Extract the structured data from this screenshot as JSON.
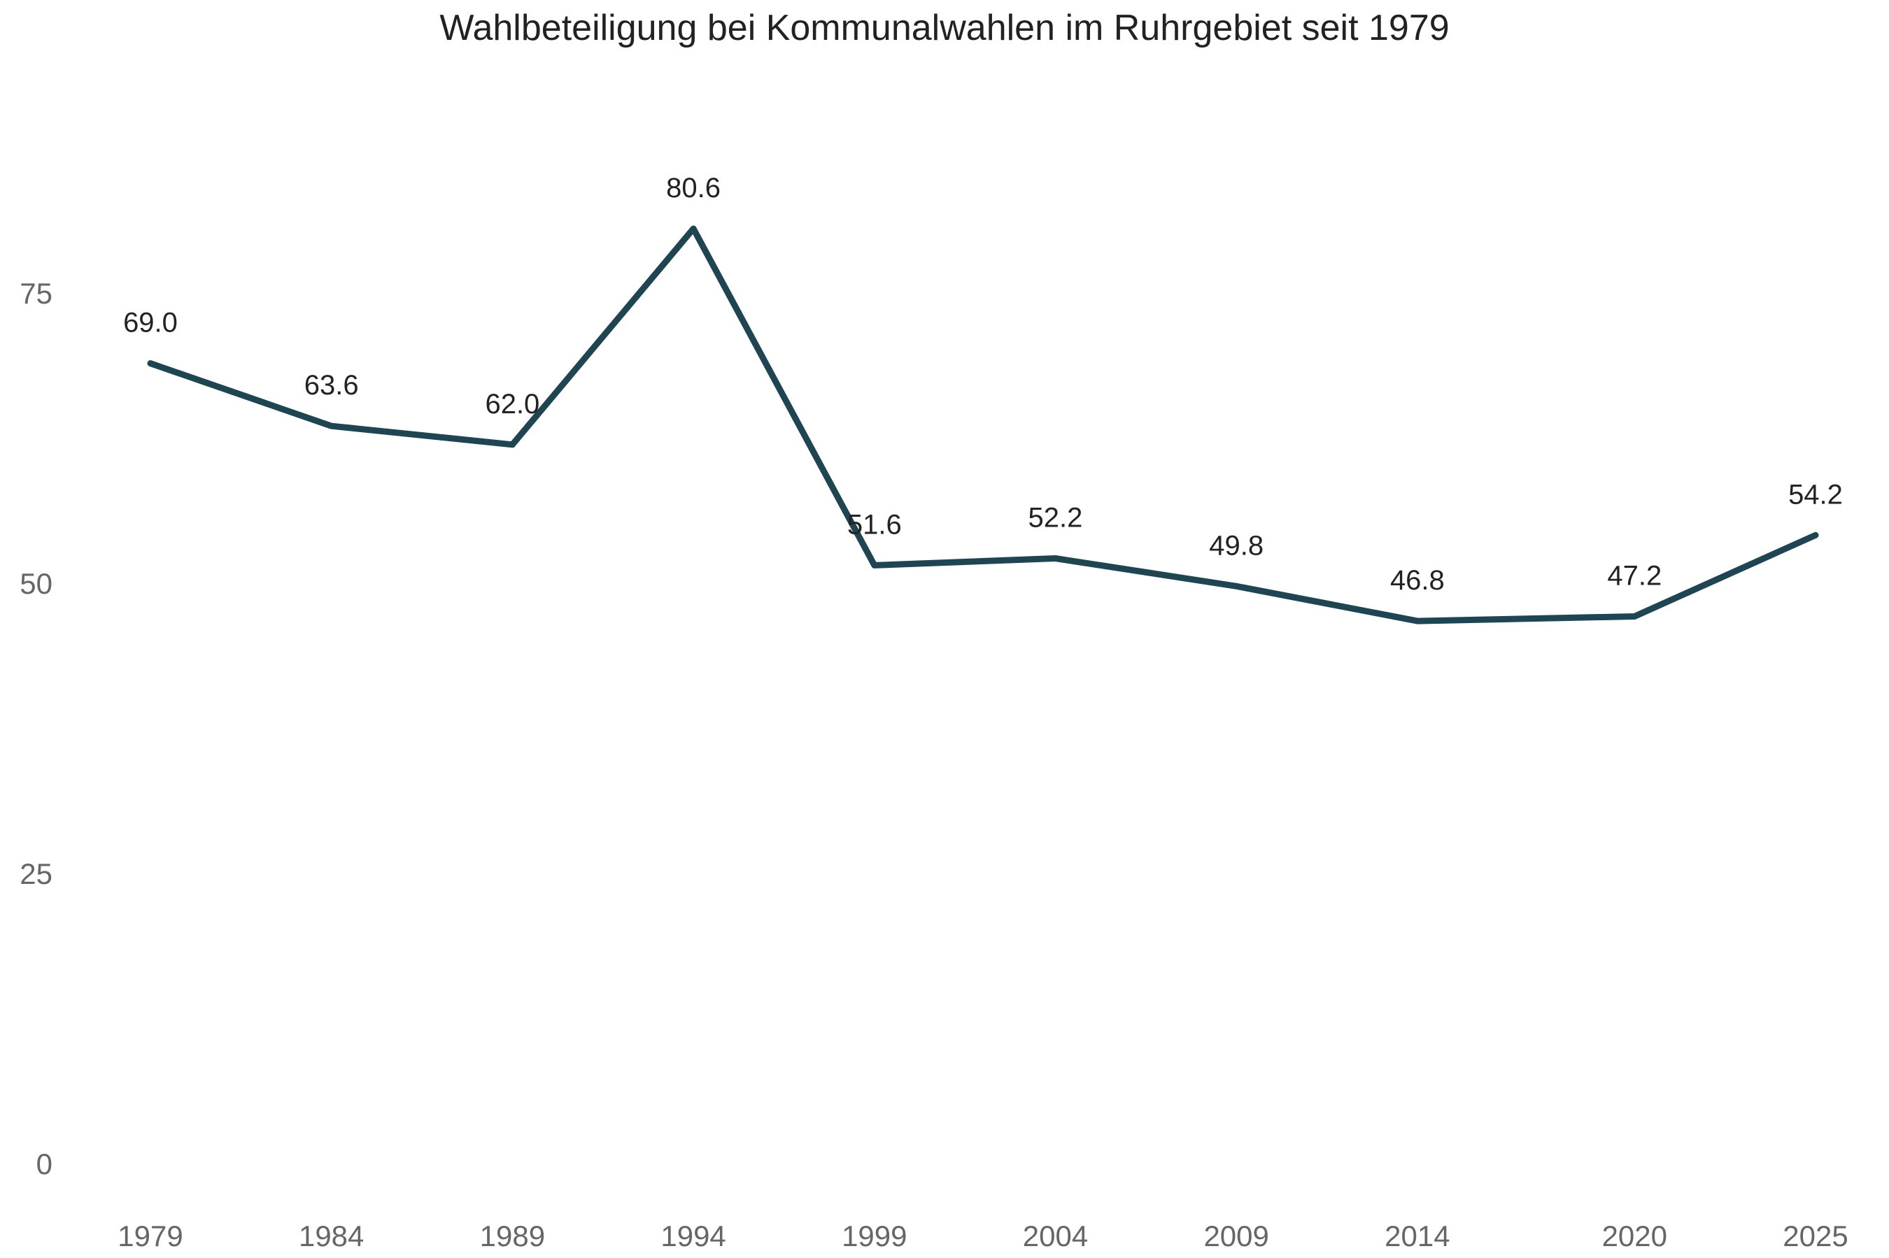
{
  "chart_data": {
    "type": "line",
    "title": "Wahlbeteiligung bei Kommunalwahlen im Ruhrgebiet seit 1979",
    "xlabel": "",
    "ylabel": "",
    "x": [
      1979,
      1984,
      1989,
      1994,
      1999,
      2004,
      2009,
      2014,
      2020,
      2025
    ],
    "x_tick_labels": [
      "1979",
      "1984",
      "1989",
      "1994",
      "1999",
      "2004",
      "2009",
      "2014",
      "2020",
      "2025"
    ],
    "series": [
      {
        "values": [
          69.0,
          63.6,
          62.0,
          80.6,
          51.6,
          52.2,
          49.8,
          46.8,
          47.2,
          54.2
        ],
        "labels": [
          "69.0",
          "63.6",
          "62.0",
          "80.6",
          "51.6",
          "52.2",
          "49.8",
          "46.8",
          "47.2",
          "54.2"
        ],
        "color": "#1f4452"
      }
    ],
    "y_ticks": [
      0,
      25,
      50,
      75
    ],
    "y_tick_labels": [
      "0",
      "25",
      "50",
      "75"
    ],
    "ylim": [
      0,
      90
    ],
    "grid": false,
    "legend": "none"
  }
}
